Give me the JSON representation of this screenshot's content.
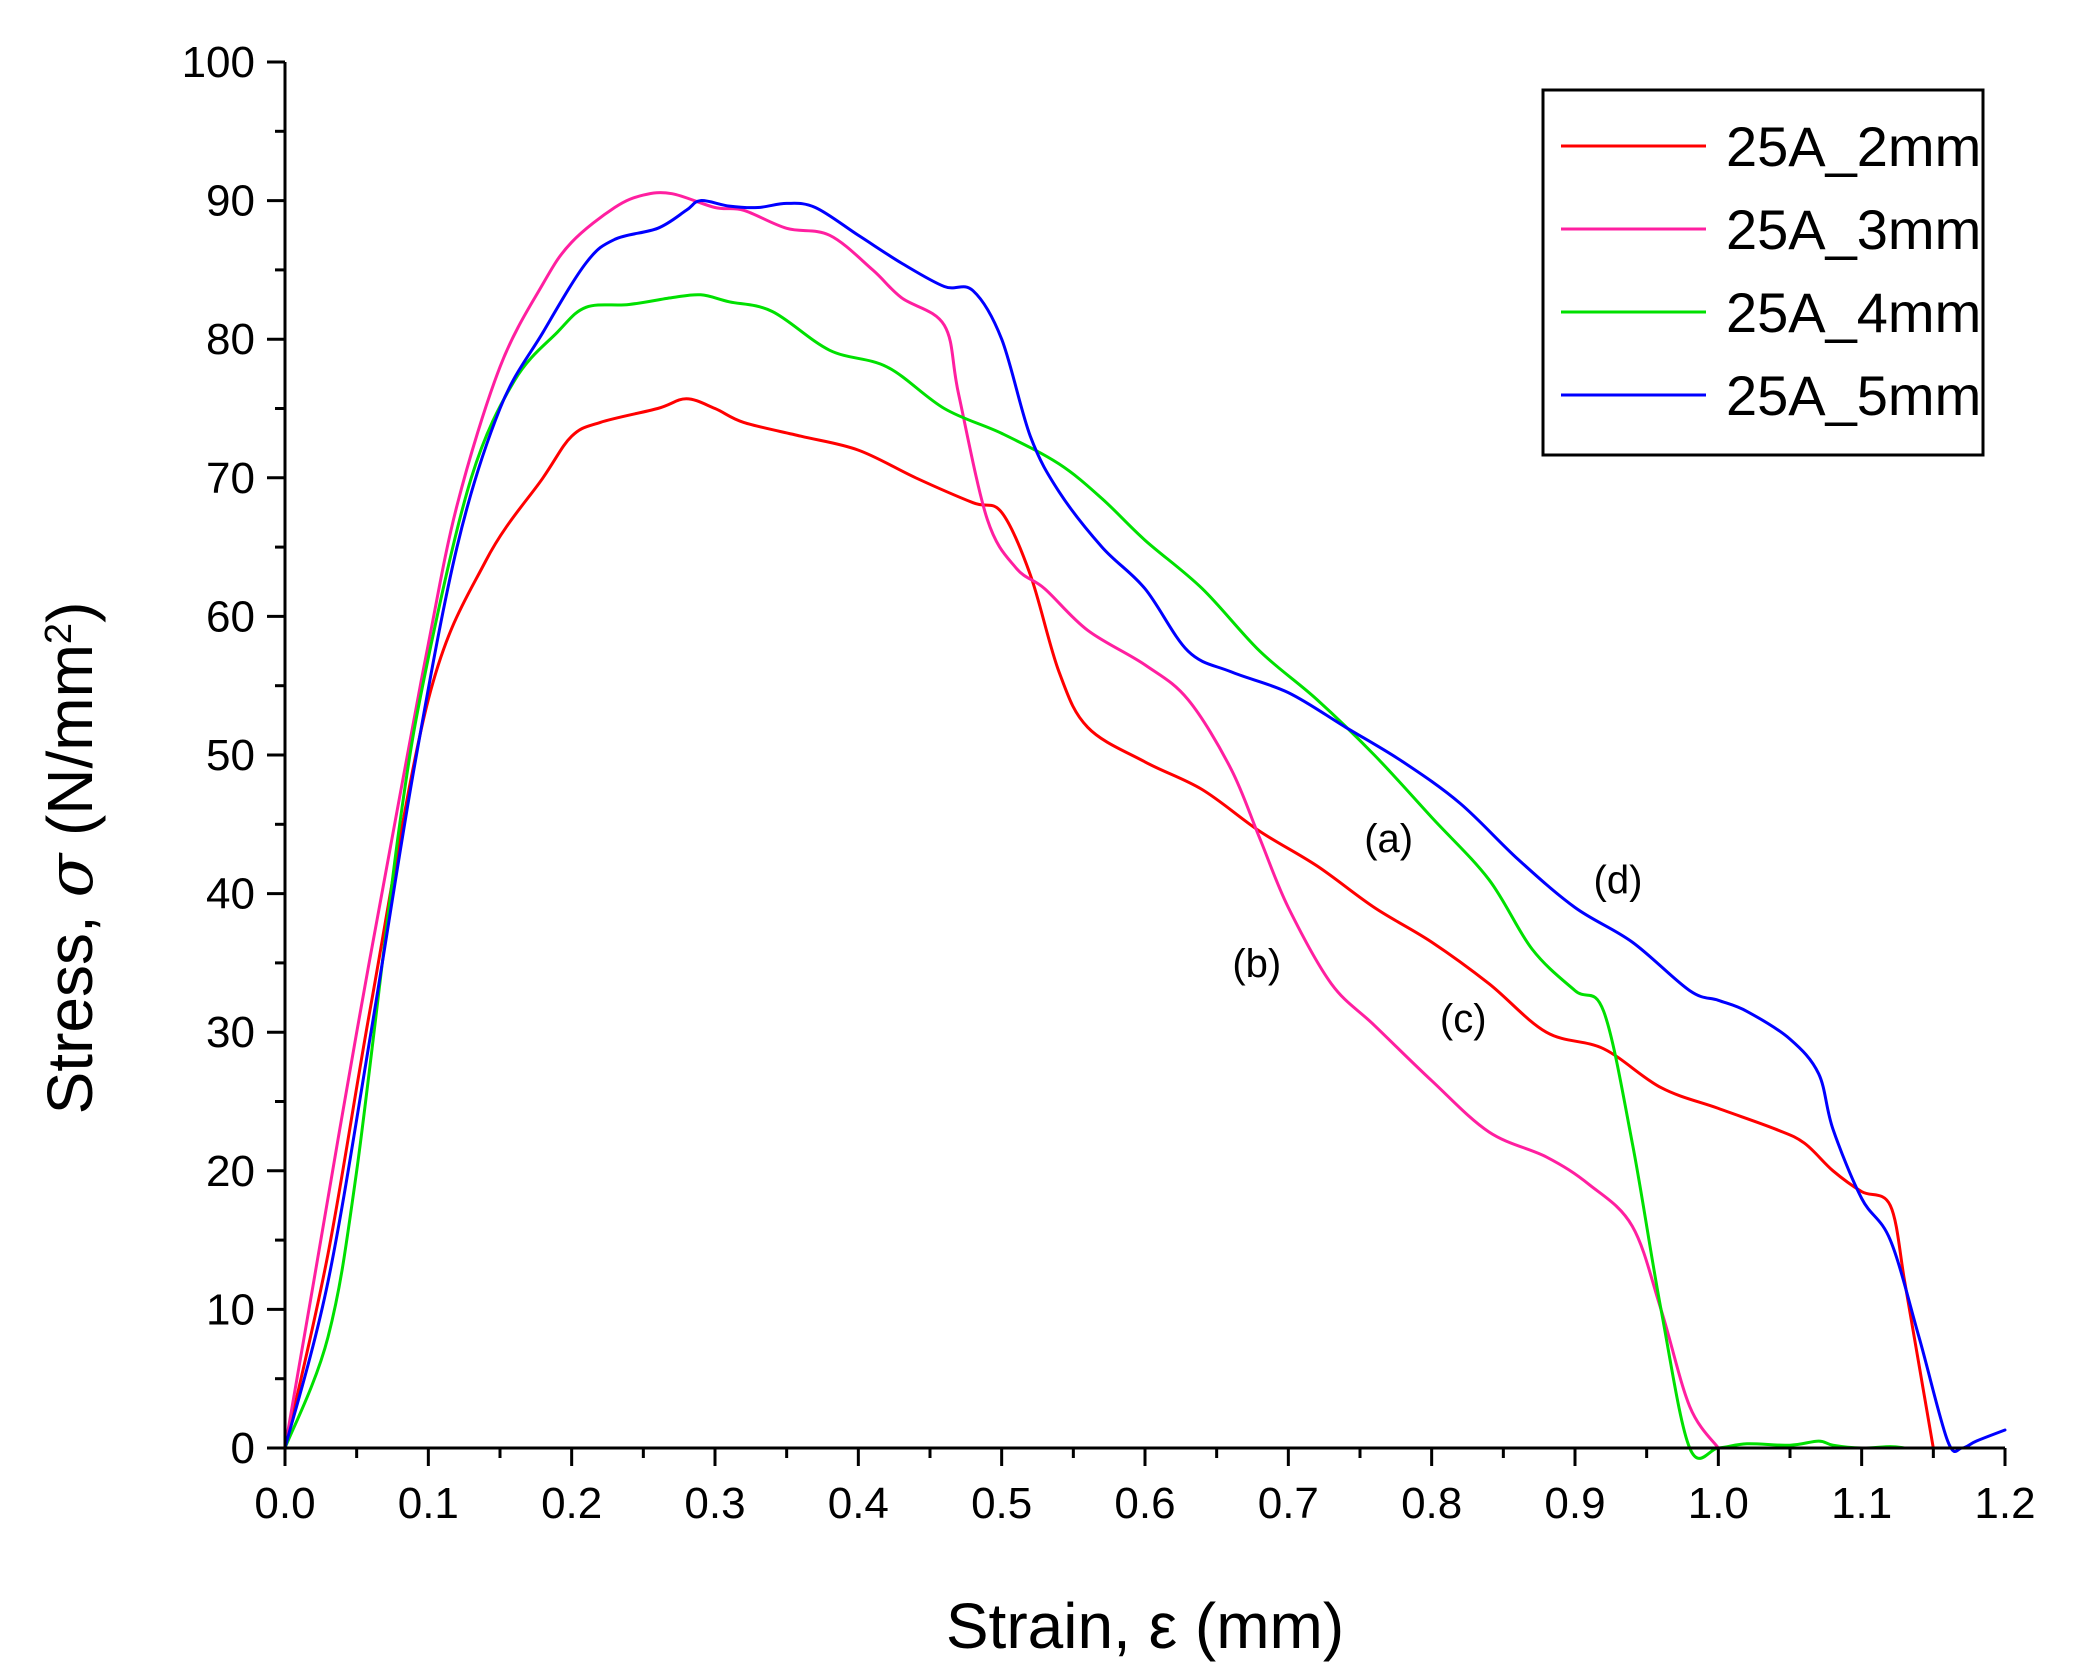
{
  "chart_data": {
    "type": "line",
    "xlabel": "Strain, ε (mm)",
    "ylabel_prefix": "Stress, ",
    "ylabel_symbol": "σ",
    "ylabel_unit": " (N/mm",
    "ylabel_sup": "2",
    "ylabel_close": ")",
    "xlim": [
      0,
      1.2
    ],
    "ylim": [
      0,
      100
    ],
    "xticks": [
      0.0,
      0.1,
      0.2,
      0.3,
      0.4,
      0.5,
      0.6,
      0.7,
      0.8,
      0.9,
      1.0,
      1.1,
      1.2
    ],
    "xtick_labels": [
      "0.0",
      "0.1",
      "0.2",
      "0.3",
      "0.4",
      "0.5",
      "0.6",
      "0.7",
      "0.8",
      "0.9",
      "1.0",
      "1.1",
      "1.2"
    ],
    "yticks": [
      0,
      10,
      20,
      30,
      40,
      50,
      60,
      70,
      80,
      90,
      100
    ],
    "ytick_labels": [
      "0",
      "10",
      "20",
      "30",
      "40",
      "50",
      "60",
      "70",
      "80",
      "90",
      "100"
    ],
    "grid": false,
    "legend_position": "top-right",
    "series": [
      {
        "name": "25A_2mm",
        "color": "#ff0000",
        "points": [
          [
            0,
            0
          ],
          [
            0.03,
            14
          ],
          [
            0.06,
            32
          ],
          [
            0.1,
            54
          ],
          [
            0.14,
            64
          ],
          [
            0.18,
            70
          ],
          [
            0.2,
            73
          ],
          [
            0.22,
            74
          ],
          [
            0.26,
            75
          ],
          [
            0.28,
            75.7
          ],
          [
            0.3,
            75
          ],
          [
            0.32,
            74
          ],
          [
            0.36,
            73
          ],
          [
            0.4,
            72
          ],
          [
            0.44,
            70
          ],
          [
            0.48,
            68.2
          ],
          [
            0.5,
            67.5
          ],
          [
            0.52,
            63
          ],
          [
            0.54,
            56
          ],
          [
            0.56,
            52
          ],
          [
            0.6,
            49.5
          ],
          [
            0.64,
            47.5
          ],
          [
            0.68,
            44.5
          ],
          [
            0.72,
            42
          ],
          [
            0.76,
            39
          ],
          [
            0.8,
            36.5
          ],
          [
            0.84,
            33.5
          ],
          [
            0.88,
            30
          ],
          [
            0.92,
            28.8
          ],
          [
            0.96,
            26
          ],
          [
            1.0,
            24.5
          ],
          [
            1.04,
            23
          ],
          [
            1.06,
            22
          ],
          [
            1.08,
            20
          ],
          [
            1.1,
            18.5
          ],
          [
            1.12,
            17.5
          ],
          [
            1.13,
            12
          ],
          [
            1.14,
            6
          ],
          [
            1.15,
            0
          ]
        ]
      },
      {
        "name": "25A_3mm",
        "color": "#ff1fa0",
        "points": [
          [
            0,
            0
          ],
          [
            0.02,
            12
          ],
          [
            0.05,
            30
          ],
          [
            0.08,
            47
          ],
          [
            0.1,
            58
          ],
          [
            0.12,
            68
          ],
          [
            0.15,
            78
          ],
          [
            0.18,
            84
          ],
          [
            0.2,
            87
          ],
          [
            0.23,
            89.5
          ],
          [
            0.25,
            90.4
          ],
          [
            0.27,
            90.5
          ],
          [
            0.3,
            89.5
          ],
          [
            0.32,
            89.3
          ],
          [
            0.35,
            88
          ],
          [
            0.38,
            87.5
          ],
          [
            0.41,
            85
          ],
          [
            0.43,
            83
          ],
          [
            0.46,
            81
          ],
          [
            0.47,
            76
          ],
          [
            0.49,
            67
          ],
          [
            0.51,
            63.5
          ],
          [
            0.53,
            62
          ],
          [
            0.56,
            59
          ],
          [
            0.6,
            56.5
          ],
          [
            0.63,
            54
          ],
          [
            0.66,
            49
          ],
          [
            0.68,
            44
          ],
          [
            0.7,
            39
          ],
          [
            0.73,
            33.5
          ],
          [
            0.76,
            30.5
          ],
          [
            0.8,
            26.5
          ],
          [
            0.84,
            22.8
          ],
          [
            0.88,
            21
          ],
          [
            0.91,
            19
          ],
          [
            0.94,
            16
          ],
          [
            0.96,
            10
          ],
          [
            0.98,
            3
          ],
          [
            1.0,
            0
          ]
        ]
      },
      {
        "name": "25A_4mm",
        "color": "#00e000",
        "points": [
          [
            0,
            0
          ],
          [
            0.03,
            8
          ],
          [
            0.05,
            20
          ],
          [
            0.08,
            45
          ],
          [
            0.1,
            57
          ],
          [
            0.13,
            70
          ],
          [
            0.16,
            77
          ],
          [
            0.19,
            80.5
          ],
          [
            0.21,
            82.3
          ],
          [
            0.24,
            82.5
          ],
          [
            0.27,
            83
          ],
          [
            0.29,
            83.2
          ],
          [
            0.31,
            82.7
          ],
          [
            0.34,
            82
          ],
          [
            0.38,
            79.2
          ],
          [
            0.42,
            78
          ],
          [
            0.46,
            75
          ],
          [
            0.5,
            73.2
          ],
          [
            0.54,
            71
          ],
          [
            0.57,
            68.5
          ],
          [
            0.6,
            65.5
          ],
          [
            0.64,
            62
          ],
          [
            0.68,
            57.5
          ],
          [
            0.72,
            54
          ],
          [
            0.76,
            50
          ],
          [
            0.8,
            45.5
          ],
          [
            0.84,
            41
          ],
          [
            0.87,
            36
          ],
          [
            0.9,
            33
          ],
          [
            0.92,
            31.5
          ],
          [
            0.94,
            22
          ],
          [
            0.96,
            10
          ],
          [
            0.98,
            0
          ],
          [
            1.0,
            0
          ],
          [
            1.02,
            0.3
          ],
          [
            1.05,
            0.2
          ],
          [
            1.07,
            0.5
          ],
          [
            1.08,
            0.2
          ],
          [
            1.1,
            0
          ],
          [
            1.12,
            0.1
          ],
          [
            1.13,
            0
          ]
        ]
      },
      {
        "name": "25A_5mm",
        "color": "#0000ff",
        "points": [
          [
            0,
            0
          ],
          [
            0.03,
            12
          ],
          [
            0.06,
            30
          ],
          [
            0.09,
            49
          ],
          [
            0.12,
            65
          ],
          [
            0.15,
            75
          ],
          [
            0.18,
            80.5
          ],
          [
            0.21,
            85.5
          ],
          [
            0.23,
            87.2
          ],
          [
            0.26,
            88
          ],
          [
            0.28,
            89.3
          ],
          [
            0.29,
            90
          ],
          [
            0.31,
            89.6
          ],
          [
            0.33,
            89.5
          ],
          [
            0.35,
            89.8
          ],
          [
            0.37,
            89.5
          ],
          [
            0.4,
            87.5
          ],
          [
            0.43,
            85.5
          ],
          [
            0.46,
            83.8
          ],
          [
            0.48,
            83.5
          ],
          [
            0.5,
            80
          ],
          [
            0.52,
            73
          ],
          [
            0.54,
            69
          ],
          [
            0.57,
            65
          ],
          [
            0.6,
            62
          ],
          [
            0.63,
            57.5
          ],
          [
            0.66,
            56
          ],
          [
            0.7,
            54.5
          ],
          [
            0.74,
            52
          ],
          [
            0.78,
            49.5
          ],
          [
            0.82,
            46.5
          ],
          [
            0.86,
            42.5
          ],
          [
            0.9,
            39
          ],
          [
            0.94,
            36.5
          ],
          [
            0.98,
            33
          ],
          [
            1.0,
            32.3
          ],
          [
            1.02,
            31.5
          ],
          [
            1.05,
            29.5
          ],
          [
            1.07,
            27
          ],
          [
            1.08,
            23
          ],
          [
            1.1,
            18
          ],
          [
            1.12,
            15
          ],
          [
            1.14,
            8
          ],
          [
            1.16,
            0.5
          ],
          [
            1.17,
            0
          ],
          [
            1.18,
            0.5
          ],
          [
            1.2,
            1.3
          ]
        ]
      }
    ],
    "annotations": [
      {
        "text": "(a)",
        "x": 0.77,
        "y": 43
      },
      {
        "text": "(b)",
        "x": 0.678,
        "y": 34
      },
      {
        "text": "(c)",
        "x": 0.822,
        "y": 30
      },
      {
        "text": "(d)",
        "x": 0.93,
        "y": 40
      }
    ]
  }
}
